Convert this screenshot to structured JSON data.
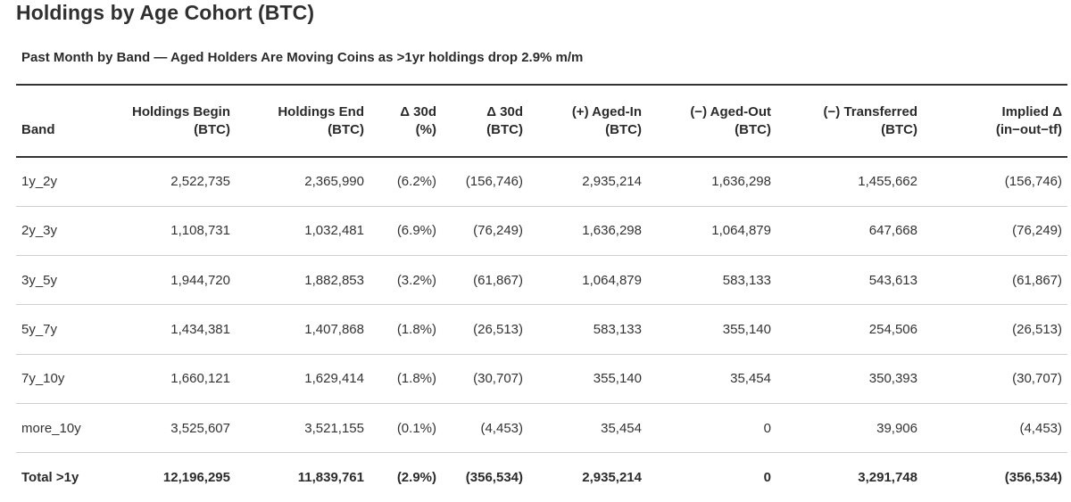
{
  "title": "Holdings by Age Cohort (BTC)",
  "subtitle": "Past Month by Band — Aged Holders Are Moving Coins as >1yr holdings drop 2.9% m/m",
  "columns": [
    {
      "l1": "",
      "l2": "Band"
    },
    {
      "l1": "Holdings Begin",
      "l2": "(BTC)"
    },
    {
      "l1": "Holdings End",
      "l2": "(BTC)"
    },
    {
      "l1": "Δ 30d",
      "l2": "(%)"
    },
    {
      "l1": "Δ 30d",
      "l2": "(BTC)"
    },
    {
      "l1": "(+) Aged-In",
      "l2": "(BTC)"
    },
    {
      "l1": "(−) Aged-Out",
      "l2": "(BTC)"
    },
    {
      "l1": "(−) Transferred",
      "l2": "(BTC)"
    },
    {
      "l1": "Implied Δ",
      "l2": "(in−out−tf)"
    }
  ],
  "rows": [
    [
      "1y_2y",
      "2,522,735",
      "2,365,990",
      "(6.2%)",
      "(156,746)",
      "2,935,214",
      "1,636,298",
      "1,455,662",
      "(156,746)"
    ],
    [
      "2y_3y",
      "1,108,731",
      "1,032,481",
      "(6.9%)",
      "(76,249)",
      "1,636,298",
      "1,064,879",
      "647,668",
      "(76,249)"
    ],
    [
      "3y_5y",
      "1,944,720",
      "1,882,853",
      "(3.2%)",
      "(61,867)",
      "1,064,879",
      "583,133",
      "543,613",
      "(61,867)"
    ],
    [
      "5y_7y",
      "1,434,381",
      "1,407,868",
      "(1.8%)",
      "(26,513)",
      "583,133",
      "355,140",
      "254,506",
      "(26,513)"
    ],
    [
      "7y_10y",
      "1,660,121",
      "1,629,414",
      "(1.8%)",
      "(30,707)",
      "355,140",
      "35,454",
      "350,393",
      "(30,707)"
    ],
    [
      "more_10y",
      "3,525,607",
      "3,521,155",
      "(0.1%)",
      "(4,453)",
      "35,454",
      "0",
      "39,906",
      "(4,453)"
    ]
  ],
  "total": [
    "Total >1y",
    "12,196,295",
    "11,839,761",
    "(2.9%)",
    "(356,534)",
    "2,935,214",
    "0",
    "3,291,748",
    "(356,534)"
  ]
}
